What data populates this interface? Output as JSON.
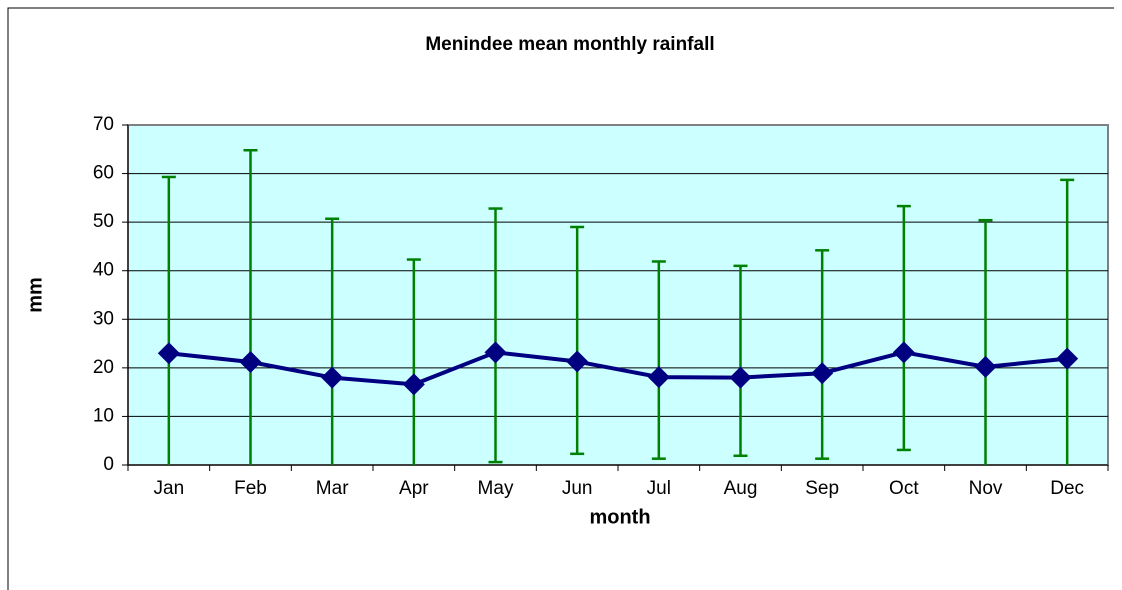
{
  "chart_data": {
    "type": "line",
    "title": "Menindee mean monthly rainfall",
    "x_label": "month",
    "y_label": "mm",
    "categories": [
      "Jan",
      "Feb",
      "Mar",
      "Apr",
      "May",
      "Jun",
      "Jul",
      "Aug",
      "Sep",
      "Oct",
      "Nov",
      "Dec"
    ],
    "series": [
      {
        "color": "#000080",
        "error_color": "#008000",
        "values": [
          23.0,
          21.2,
          18.0,
          16.6,
          23.2,
          21.3,
          18.1,
          18.0,
          18.9,
          23.2,
          20.2,
          21.9
        ],
        "error_plus": [
          36.3,
          43.6,
          32.7,
          25.7,
          29.6,
          27.7,
          23.8,
          23.0,
          25.3,
          30.1,
          30.2,
          36.8
        ],
        "error_minus": [
          36.3,
          43.6,
          32.7,
          25.7,
          22.6,
          19.0,
          16.8,
          16.1,
          17.6,
          20.1,
          30.2,
          36.8
        ]
      }
    ],
    "ylim": [
      0,
      70
    ],
    "yticks": [
      0,
      10,
      20,
      30,
      40,
      50,
      60,
      70
    ],
    "grid": true,
    "plot_background": "#ccffff"
  }
}
